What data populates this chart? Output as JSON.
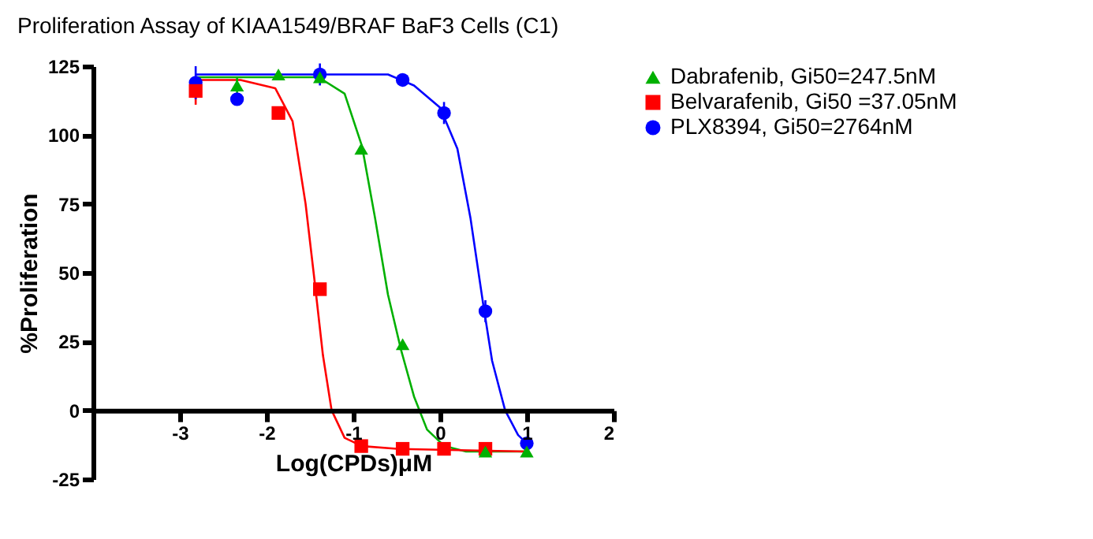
{
  "chart_data": {
    "type": "scatter",
    "title": "Proliferation Assay of KIAA1549/BRAF BaF3 Cells (C1)",
    "xlabel": "Log(CPDs)μM",
    "ylabel": "%Proliferation",
    "x": [
      -2.817,
      -2.34,
      -1.863,
      -1.385,
      -0.908,
      -0.431,
      0.046,
      0.523,
      1.0
    ],
    "series": [
      {
        "name": "Dabrafenib, Gi50=247.5nM",
        "color": "#00b000",
        "marker": "triangle",
        "values": [
          null,
          118,
          122,
          121,
          95,
          24,
          null,
          -15,
          -15
        ],
        "errors": [
          null,
          3,
          null,
          null,
          null,
          null,
          null,
          null,
          null
        ]
      },
      {
        "name": "Belvarafenib, Gi50 =37.05nM",
        "color": "#ff0000",
        "marker": "square",
        "values": [
          116,
          null,
          108,
          44,
          -13,
          -14,
          -14,
          -14,
          null
        ],
        "errors": [
          5,
          null,
          null,
          null,
          null,
          null,
          null,
          null,
          null
        ]
      },
      {
        "name": "PLX8394, Gi50=2764nM",
        "color": "#0000ff",
        "marker": "circle",
        "values": [
          119,
          113,
          null,
          122,
          null,
          120,
          108,
          36,
          -12
        ],
        "errors": [
          6,
          2,
          null,
          4,
          null,
          null,
          4,
          4,
          null
        ]
      },
      {
        "type": "line",
        "color": "#00b000",
        "x": [
          -2.817,
          -1.4,
          -1.1,
          -0.9,
          -0.75,
          -0.6,
          -0.45,
          -0.3,
          -0.15,
          0.05,
          0.3,
          1.0
        ],
        "values": [
          121,
          121,
          115,
          96,
          70,
          42,
          22,
          5,
          -7,
          -13,
          -15,
          -15
        ]
      },
      {
        "type": "line",
        "color": "#ff0000",
        "x": [
          -2.817,
          -2.3,
          -1.9,
          -1.7,
          -1.55,
          -1.45,
          -1.35,
          -1.25,
          -1.1,
          -0.9,
          -0.5,
          1.0
        ],
        "values": [
          120,
          120,
          117,
          105,
          75,
          48,
          20,
          0,
          -10,
          -13,
          -14,
          -15
        ]
      },
      {
        "type": "line",
        "color": "#0000ff",
        "x": [
          -2.817,
          -0.6,
          -0.3,
          0.0,
          0.2,
          0.35,
          0.5,
          0.6,
          0.75,
          0.9,
          1.0
        ],
        "values": [
          122,
          122,
          118,
          110,
          95,
          70,
          38,
          18,
          0,
          -9,
          -12
        ]
      }
    ],
    "xlim": [
      -4,
      2
    ],
    "xticks": [
      -3,
      -2,
      -1,
      0,
      1,
      2
    ],
    "ylim": [
      -25,
      125
    ],
    "yticks": [
      -25,
      0,
      25,
      50,
      75,
      100,
      125
    ],
    "grid": false,
    "legend": "right",
    "line_style": "solid"
  }
}
